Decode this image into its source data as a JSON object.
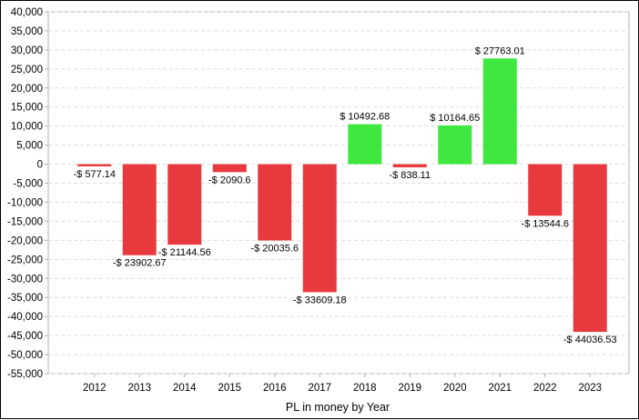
{
  "chart_data": {
    "type": "bar",
    "title": "",
    "xlabel": "PL in money by Year",
    "ylabel": "",
    "ylim": [
      -55000,
      40000
    ],
    "ytick_step": 5000,
    "grid": true,
    "categories": [
      "2012",
      "2013",
      "2014",
      "2015",
      "2016",
      "2017",
      "2018",
      "2019",
      "2020",
      "2021",
      "2022",
      "2023"
    ],
    "values": [
      -577.14,
      -23902.67,
      -21144.56,
      -2090.6,
      -20035.6,
      -33609.18,
      10492.68,
      -838.11,
      10164.65,
      27763.01,
      -13544.6,
      -44036.53
    ],
    "data_labels": [
      "-$ 577.14",
      "-$ 23902.67",
      "-$ 21144.56",
      "-$ 2090.6",
      "-$ 20035.6",
      "-$ 33609.18",
      "$ 10492.68",
      "-$ 838.11",
      "$ 10164.65",
      "$ 27763.01",
      "-$ 13544.6",
      "-$ 44036.53"
    ],
    "colors": {
      "positive": "#3ee83e",
      "negative": "#e83a3e",
      "grid": "#dcdcdc",
      "axis": "#b0b0b0"
    }
  }
}
